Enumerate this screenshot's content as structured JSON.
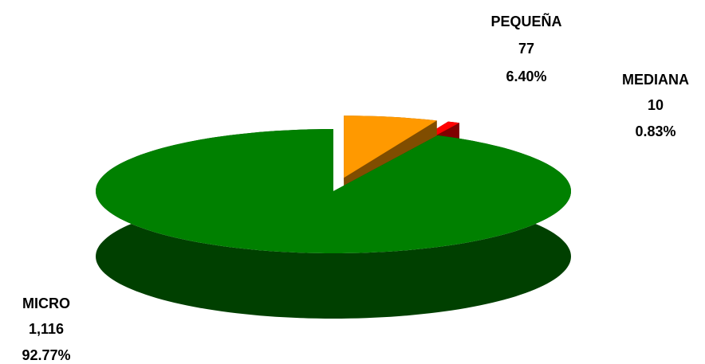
{
  "chart_data": {
    "type": "pie",
    "categories": [
      "MICRO",
      "PEQUEÑA",
      "MEDIANA"
    ],
    "values": [
      1116,
      77,
      10
    ],
    "value_labels": [
      "1,116",
      "77",
      "10"
    ],
    "percentages": [
      92.77,
      6.4,
      0.83
    ],
    "percentage_labels": [
      "92.77%",
      "6.40%",
      "0.83%"
    ],
    "colors": [
      "#008000",
      "#ff9900",
      "#ff0000"
    ]
  }
}
